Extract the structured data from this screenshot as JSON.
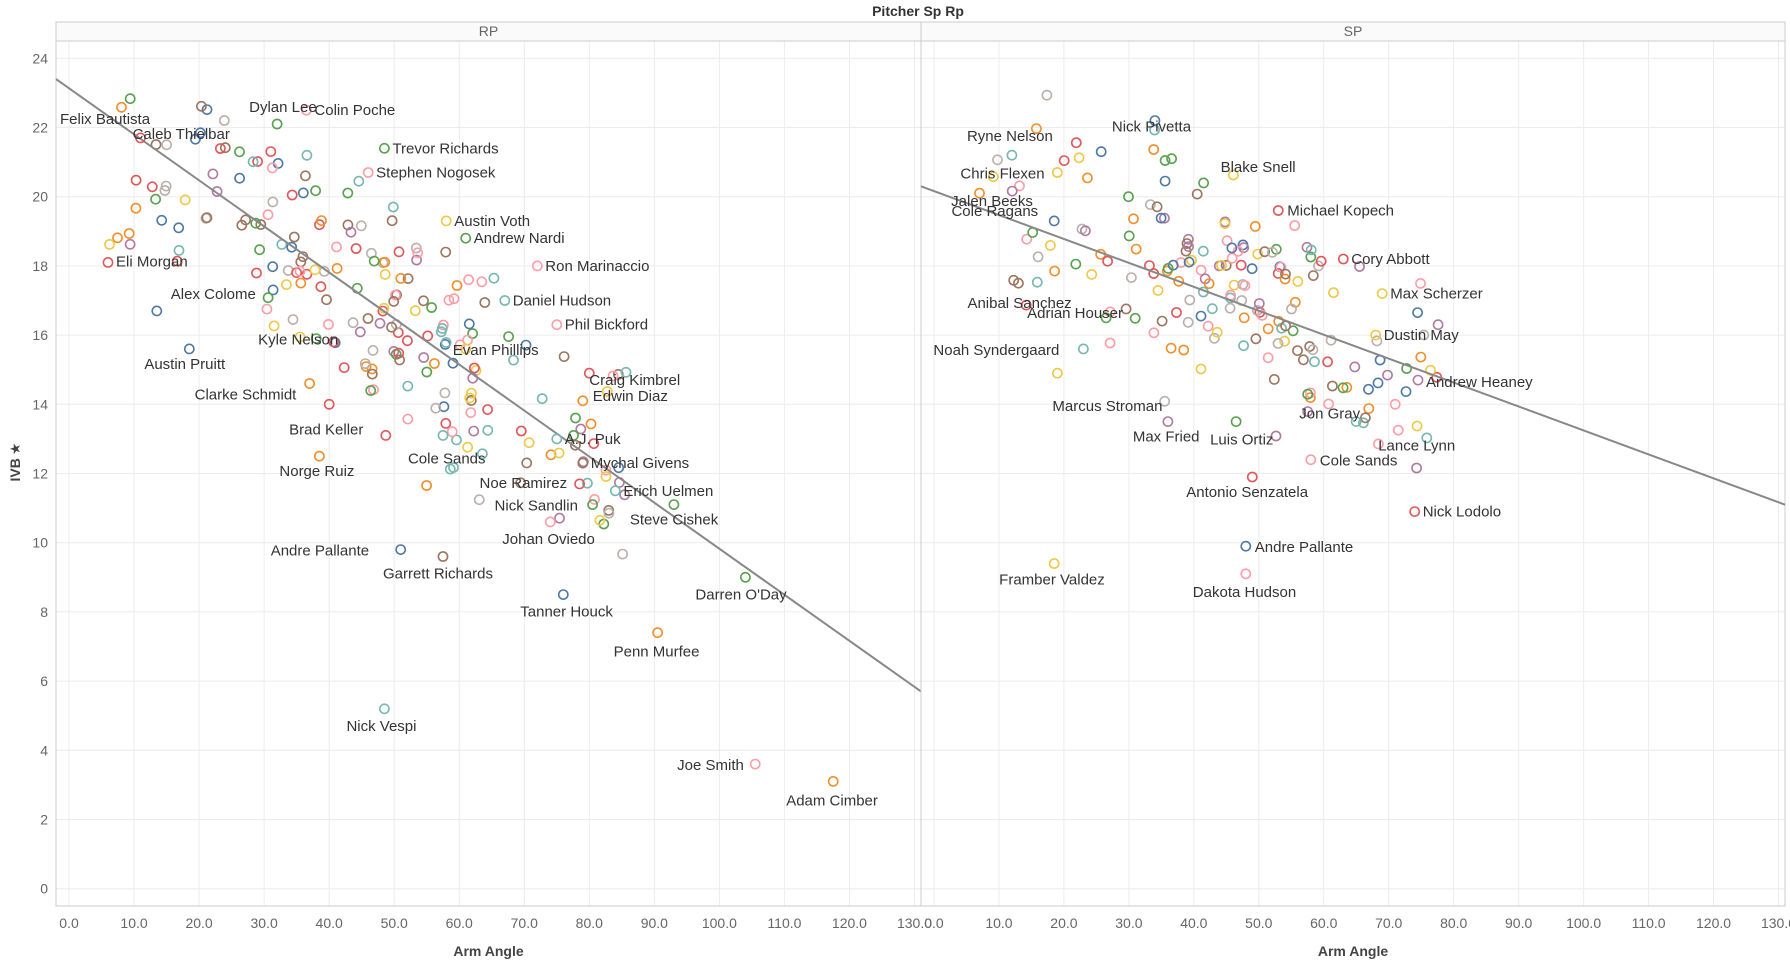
{
  "chart_data": {
    "type": "scatter",
    "title": "Pitcher Sp Rp",
    "xlabel": "Arm Angle",
    "ylabel": "IVB",
    "ylabel_marker": "★",
    "xlim": [
      -2,
      131
    ],
    "ylim": [
      -0.5,
      24.5
    ],
    "x_ticks": [
      0,
      10,
      20,
      30,
      40,
      50,
      60,
      70,
      80,
      90,
      100,
      110,
      120,
      130
    ],
    "y_ticks": [
      0,
      2,
      4,
      6,
      8,
      10,
      12,
      14,
      16,
      18,
      20,
      22,
      24
    ],
    "colors": [
      "#4e79a7",
      "#f28e2b",
      "#e15759",
      "#76b7b2",
      "#59a14f",
      "#edc948",
      "#b07aa1",
      "#ff9da7",
      "#9c755f",
      "#bab0ac"
    ],
    "facets": [
      {
        "name": "RP",
        "trend": {
          "x0": -2,
          "y0": 23.4,
          "x1": 131,
          "y1": 5.7
        },
        "labeled": [
          {
            "name": "Colin Poche",
            "x": 36.5,
            "y": 22.5,
            "color": "#ff9da7"
          },
          {
            "name": "Felix Bautista",
            "x": 11,
            "y": 21.7,
            "color": "#e15759"
          },
          {
            "name": "Dylan Lee",
            "x": 32,
            "y": 22.1,
            "color": "#59a14f"
          },
          {
            "name": "Trevor Richards",
            "x": 48.5,
            "y": 21.4,
            "color": "#59a14f"
          },
          {
            "name": "Caleb Thielbar",
            "x": 15,
            "y": 21.5,
            "color": "#bab0ac"
          },
          {
            "name": "Stephen Nogosek",
            "x": 46,
            "y": 20.7,
            "color": "#ff9da7"
          },
          {
            "name": "Austin Voth",
            "x": 58,
            "y": 19.3,
            "color": "#edc948"
          },
          {
            "name": "Andrew Nardi",
            "x": 61,
            "y": 18.8,
            "color": "#59a14f"
          },
          {
            "name": "Eli Morgan",
            "x": 6,
            "y": 18.1,
            "color": "#e15759"
          },
          {
            "name": "Ron Marinaccio",
            "x": 72,
            "y": 18,
            "color": "#ff9da7"
          },
          {
            "name": "Alex Colome",
            "x": 13.5,
            "y": 16.7,
            "color": "#4e79a7"
          },
          {
            "name": "Daniel Hudson",
            "x": 67,
            "y": 17,
            "color": "#76b7b2"
          },
          {
            "name": "Phil Bickford",
            "x": 75,
            "y": 16.3,
            "color": "#ff9da7"
          },
          {
            "name": "Kyle Nelson",
            "x": 38,
            "y": 15.9,
            "color": "#59a14f"
          },
          {
            "name": "Evan Phillips",
            "x": 61,
            "y": 15.6,
            "color": "#edc948"
          },
          {
            "name": "Craig Kimbrel",
            "x": 80,
            "y": 14.9,
            "color": "#e15759"
          },
          {
            "name": "Austin Pruitt",
            "x": 18.5,
            "y": 15.6,
            "color": "#4e79a7"
          },
          {
            "name": "Clarke Schmidt",
            "x": 37,
            "y": 14.6,
            "color": "#f28e2b"
          },
          {
            "name": "Edwin Diaz",
            "x": 79,
            "y": 14.1,
            "color": "#f28e2b"
          },
          {
            "name": "Brad Keller",
            "x": 40,
            "y": 14,
            "color": "#e15759"
          },
          {
            "name": "A.J. Puk",
            "x": 75,
            "y": 13,
            "color": "#76b7b2"
          },
          {
            "name": "Cole Sands",
            "x": 57.5,
            "y": 13.1,
            "color": "#76b7b2"
          },
          {
            "name": "Mychal Givens",
            "x": 79,
            "y": 12.3,
            "color": "#9c755f"
          },
          {
            "name": "Norge Ruiz",
            "x": 38.5,
            "y": 12.5,
            "color": "#f28e2b"
          },
          {
            "name": "Noe Ramirez",
            "x": 78.5,
            "y": 11.7,
            "color": "#e15759"
          },
          {
            "name": "Erich Uelmen",
            "x": 84,
            "y": 11.5,
            "color": "#76b7b2"
          },
          {
            "name": "Nick Sandlin",
            "x": 80.5,
            "y": 11.1,
            "color": "#59a14f"
          },
          {
            "name": "Steve Cishek",
            "x": 93,
            "y": 11.1,
            "color": "#59a14f"
          },
          {
            "name": "Johan Oviedo",
            "x": 74,
            "y": 10.6,
            "color": "#ff9da7"
          },
          {
            "name": "Andre Pallante",
            "x": 51,
            "y": 9.8,
            "color": "#4e79a7"
          },
          {
            "name": "Garrett Richards",
            "x": 57.5,
            "y": 9.6,
            "color": "#9c755f"
          },
          {
            "name": "Darren O'Day",
            "x": 104,
            "y": 9,
            "color": "#59a14f"
          },
          {
            "name": "Tanner Houck",
            "x": 76,
            "y": 8.5,
            "color": "#4e79a7"
          },
          {
            "name": "Penn Murfee",
            "x": 90.5,
            "y": 7.4,
            "color": "#f28e2b"
          },
          {
            "name": "Nick Vespi",
            "x": 48.5,
            "y": 5.2,
            "color": "#76b7b2"
          },
          {
            "name": "Joe Smith",
            "x": 105.5,
            "y": 3.6,
            "color": "#ff9da7"
          },
          {
            "name": "Adam Cimber",
            "x": 117.5,
            "y": 3.1,
            "color": "#f28e2b"
          }
        ]
      },
      {
        "name": "SP",
        "trend": {
          "x0": -2,
          "y0": 20.3,
          "x1": 131,
          "y1": 11.1
        },
        "labeled": [
          {
            "name": "Nick Pivetta",
            "x": 34,
            "y": 22.2,
            "color": "#4e79a7"
          },
          {
            "name": "Ryne Nelson",
            "x": 12,
            "y": 21.2,
            "color": "#76b7b2"
          },
          {
            "name": "Chris Flexen",
            "x": 19,
            "y": 20.7,
            "color": "#edc948"
          },
          {
            "name": "Blake Snell",
            "x": 41.5,
            "y": 20.4,
            "color": "#59a14f"
          },
          {
            "name": "Cole Ragans",
            "x": 7,
            "y": 20.1,
            "color": "#f28e2b"
          },
          {
            "name": "Michael Kopech",
            "x": 53,
            "y": 19.6,
            "color": "#e15759"
          },
          {
            "name": "Jalen Beeks",
            "x": 18.5,
            "y": 19.3,
            "color": "#4e79a7"
          },
          {
            "name": "Cory Abbott",
            "x": 63,
            "y": 18.2,
            "color": "#e15759"
          },
          {
            "name": "Anibal Sanchez",
            "x": 13,
            "y": 17.5,
            "color": "#9c755f"
          },
          {
            "name": "Max Scherzer",
            "x": 69,
            "y": 17.2,
            "color": "#edc948"
          },
          {
            "name": "Adrian Houser",
            "x": 26.5,
            "y": 16.5,
            "color": "#59a14f"
          },
          {
            "name": "Dustin May",
            "x": 68,
            "y": 16,
            "color": "#edc948"
          },
          {
            "name": "Noah Syndergaard",
            "x": 23,
            "y": 15.6,
            "color": "#76b7b2"
          },
          {
            "name": "Andrew Heaney",
            "x": 74.5,
            "y": 14.7,
            "color": "#b07aa1"
          },
          {
            "name": "Marcus Stroman",
            "x": 19,
            "y": 14.9,
            "color": "#edc948"
          },
          {
            "name": "Jon Gray",
            "x": 65,
            "y": 13.5,
            "color": "#76b7b2"
          },
          {
            "name": "Lance Lynn",
            "x": 71,
            "y": 14,
            "color": "#ff9da7"
          },
          {
            "name": "Max Fried",
            "x": 36,
            "y": 13.5,
            "color": "#b07aa1"
          },
          {
            "name": "Luis Ortiz",
            "x": 46.5,
            "y": 13.5,
            "color": "#59a14f"
          },
          {
            "name": "Cole Sands",
            "x": 58,
            "y": 12.4,
            "color": "#ff9da7"
          },
          {
            "name": "Antonio Senzatela",
            "x": 49,
            "y": 11.9,
            "color": "#e15759"
          },
          {
            "name": "Nick Lodolo",
            "x": 74,
            "y": 10.9,
            "color": "#e15759"
          },
          {
            "name": "Andre Pallante",
            "x": 48,
            "y": 9.9,
            "color": "#4e79a7"
          },
          {
            "name": "Framber Valdez",
            "x": 18.5,
            "y": 9.4,
            "color": "#edc948"
          },
          {
            "name": "Dakota Hudson",
            "x": 48,
            "y": 9.1,
            "color": "#ff9da7"
          }
        ]
      }
    ]
  }
}
